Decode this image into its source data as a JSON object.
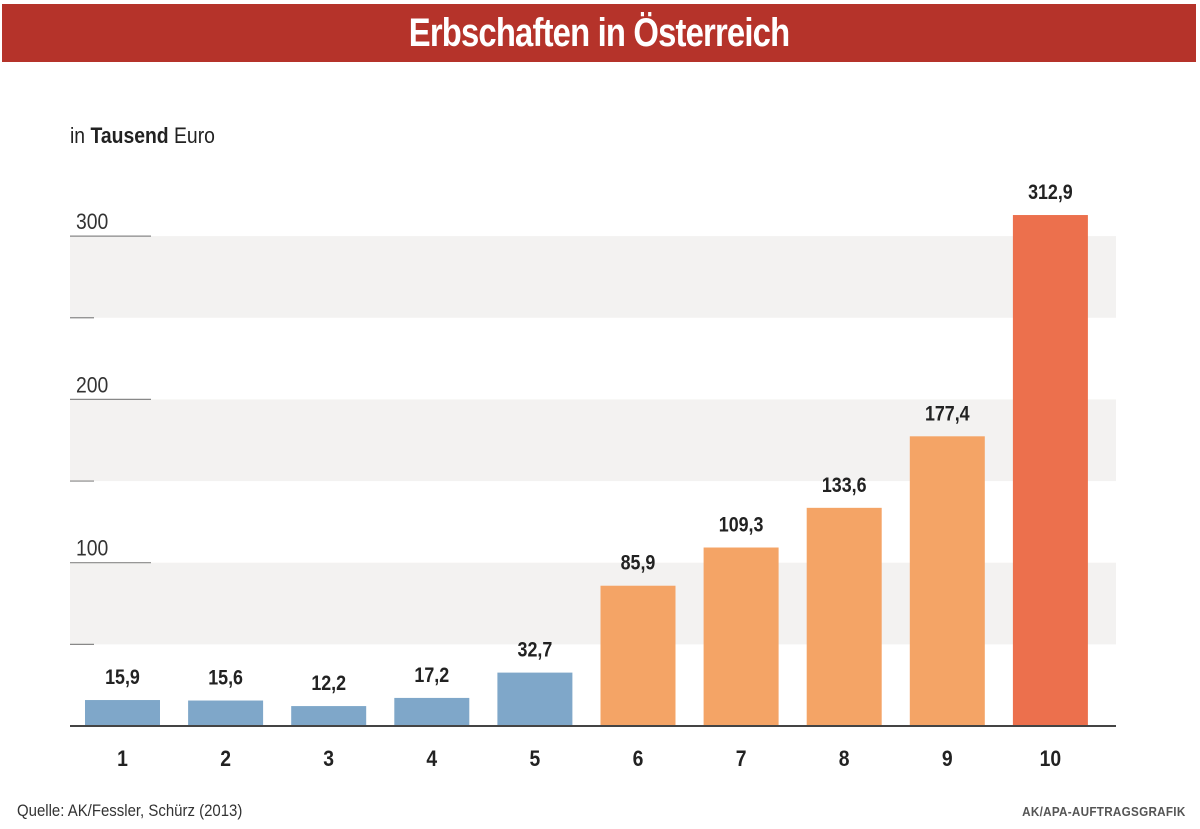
{
  "title": "Erbschaften in Österreich",
  "unit_label": {
    "prefix": "in ",
    "bold": "Tausend",
    "suffix": " Euro"
  },
  "source": "Quelle: AK/Fessler, Schürz (2013)",
  "credit": "AK/APA-AUFTRAGSGRAFIK",
  "colors": {
    "title_bg": "#b5332a",
    "blue": "#7fa7c9",
    "orange": "#f4a466",
    "red": "#ec704d",
    "band": "#f3f2f1"
  },
  "chart_data": {
    "type": "bar",
    "title": "Erbschaften in Österreich",
    "xlabel": "",
    "ylabel": "in Tausend Euro",
    "ylim": [
      0,
      350
    ],
    "yticks": [
      100,
      200,
      300
    ],
    "minor_ticks": [
      50,
      150,
      250
    ],
    "categories": [
      "1",
      "2",
      "3",
      "4",
      "5",
      "6",
      "7",
      "8",
      "9",
      "10"
    ],
    "values": [
      15.9,
      15.6,
      12.2,
      17.2,
      32.7,
      85.9,
      109.3,
      133.6,
      177.4,
      312.9
    ],
    "value_labels": [
      "15,9",
      "15,6",
      "12,2",
      "17,2",
      "32,7",
      "85,9",
      "109,3",
      "133,6",
      "177,4",
      "312,9"
    ],
    "bar_colors": [
      "blue",
      "blue",
      "blue",
      "blue",
      "blue",
      "orange",
      "orange",
      "orange",
      "orange",
      "red"
    ]
  }
}
